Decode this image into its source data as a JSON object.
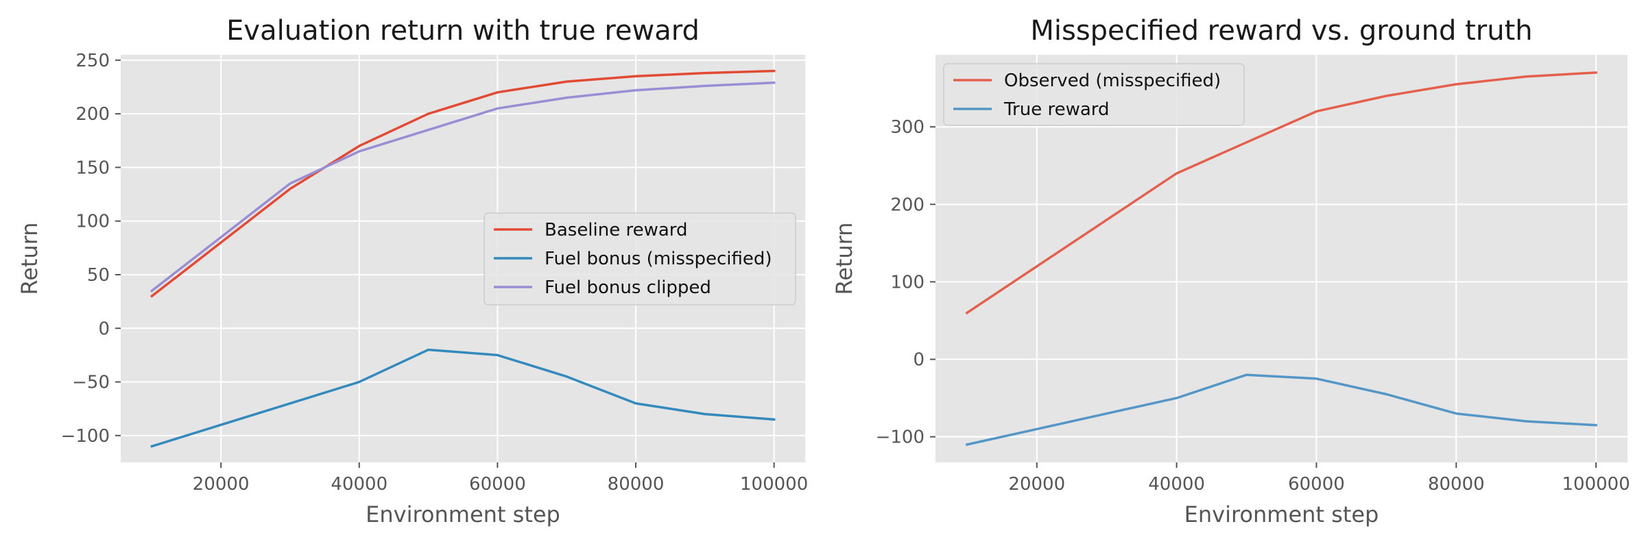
{
  "chart_data": [
    {
      "type": "line",
      "title": "Evaluation return with true reward",
      "xlabel": "Environment step",
      "ylabel": "Return",
      "xlim": [
        5500,
        104500
      ],
      "ylim": [
        -125,
        255
      ],
      "xticks": [
        20000,
        40000,
        60000,
        80000,
        100000
      ],
      "xtick_labels": [
        "20000",
        "40000",
        "60000",
        "80000",
        "100000"
      ],
      "yticks": [
        -100,
        -50,
        0,
        50,
        100,
        150,
        200,
        250
      ],
      "ytick_labels": [
        "−100",
        "−50",
        "0",
        "50",
        "100",
        "150",
        "200",
        "250"
      ],
      "grid": true,
      "legend_position": "center-right",
      "x": [
        10000,
        20000,
        30000,
        40000,
        50000,
        60000,
        70000,
        80000,
        90000,
        100000
      ],
      "series": [
        {
          "name": "Baseline reward",
          "color": "#E24A33",
          "values": [
            30,
            80,
            130,
            170,
            200,
            220,
            230,
            235,
            238,
            240
          ]
        },
        {
          "name": "Fuel bonus (misspecified)",
          "color": "#348ABD",
          "values": [
            -110,
            -90,
            -70,
            -50,
            -20,
            -25,
            -45,
            -70,
            -80,
            -85
          ]
        },
        {
          "name": "Fuel bonus clipped",
          "color": "#988ED5",
          "values": [
            35,
            85,
            135,
            165,
            185,
            205,
            215,
            222,
            226,
            229
          ]
        }
      ]
    },
    {
      "type": "line",
      "title": "Misspecified reward vs. ground truth",
      "xlabel": "Environment step",
      "ylabel": "Return",
      "xlim": [
        5500,
        104500
      ],
      "ylim": [
        -133,
        393
      ],
      "xticks": [
        20000,
        40000,
        60000,
        80000,
        100000
      ],
      "xtick_labels": [
        "20000",
        "40000",
        "60000",
        "80000",
        "100000"
      ],
      "yticks": [
        -100,
        0,
        100,
        200,
        300
      ],
      "ytick_labels": [
        "−100",
        "0",
        "100",
        "200",
        "300"
      ],
      "grid": true,
      "legend_position": "top-left",
      "x": [
        10000,
        20000,
        30000,
        40000,
        50000,
        60000,
        70000,
        80000,
        90000,
        100000
      ],
      "series": [
        {
          "name": "Observed (misspecified)",
          "color": "#E5604C",
          "values": [
            60,
            120,
            180,
            240,
            280,
            320,
            340,
            355,
            365,
            370
          ]
        },
        {
          "name": "True reward",
          "color": "#5497C7",
          "values": [
            -110,
            -90,
            -70,
            -50,
            -20,
            -25,
            -45,
            -70,
            -80,
            -85
          ]
        }
      ]
    }
  ]
}
